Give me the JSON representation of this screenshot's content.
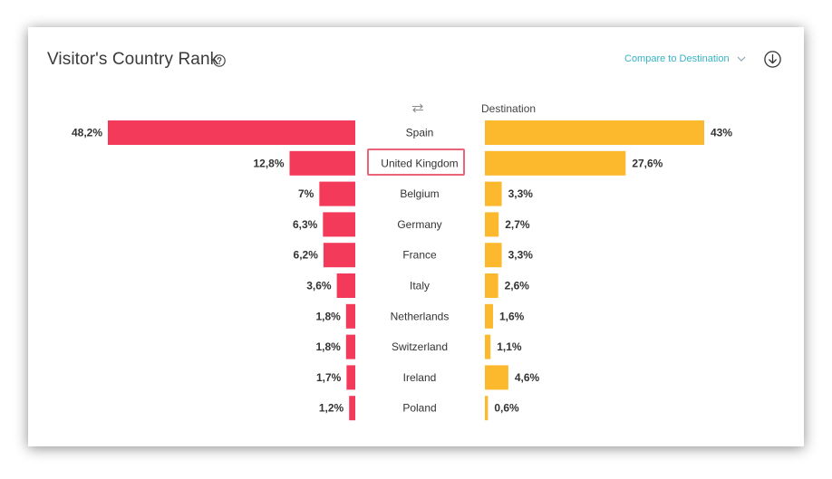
{
  "header": {
    "title": "Visitor's Country Rank",
    "compare_label": "Compare to Destination",
    "destination_label": "Destination"
  },
  "colors": {
    "left_bar": "#f43a5a",
    "right_bar": "#fdb92e",
    "accent": "#36b3c4",
    "highlight_border": "#ea6377"
  },
  "icons": [
    "help-icon",
    "chevron-down-icon",
    "download-icon",
    "swap-icon"
  ],
  "highlighted_country": "United Kingdom",
  "chart_data": {
    "type": "bar",
    "categories": [
      "Spain",
      "United Kingdom",
      "Belgium",
      "Germany",
      "France",
      "Italy",
      "Netherlands",
      "Switzerland",
      "Ireland",
      "Poland"
    ],
    "series": [
      {
        "values": [
          48.2,
          12.8,
          7,
          6.3,
          6.2,
          3.6,
          1.8,
          1.8,
          1.7,
          1.2
        ],
        "labels": [
          "48,2%",
          "12,8%",
          "7%",
          "6,3%",
          "6,2%",
          "3,6%",
          "1,8%",
          "1,8%",
          "1,7%",
          "1,2%"
        ]
      },
      {
        "name": "Destination",
        "values": [
          43,
          27.6,
          3.3,
          2.7,
          3.3,
          2.6,
          1.6,
          1.1,
          4.6,
          0.6
        ],
        "labels": [
          "43%",
          "27,6%",
          "3,3%",
          "2,7%",
          "3,3%",
          "2,6%",
          "1,6%",
          "1,1%",
          "4,6%",
          "0,6%"
        ]
      }
    ],
    "layout": "butterfly"
  }
}
